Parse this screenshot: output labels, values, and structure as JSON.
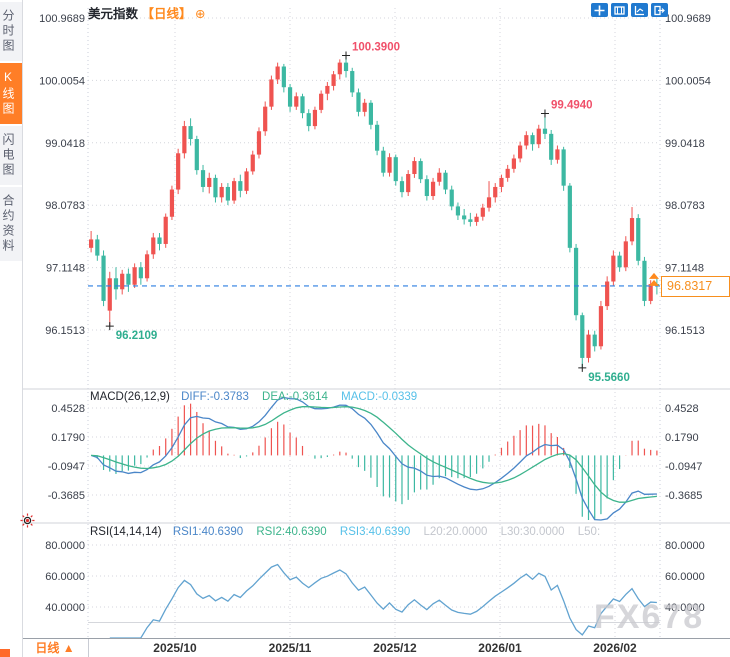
{
  "header": {
    "symbol": "美元指数",
    "period_tag": "【日线】",
    "expand_icon": "⊕"
  },
  "sidebar": {
    "items": [
      {
        "label": "分时图",
        "active": false
      },
      {
        "label": "K线图",
        "active": true
      },
      {
        "label": "闪电图",
        "active": false
      },
      {
        "label": "合约资料",
        "active": false
      }
    ]
  },
  "toolbar": {
    "icons": [
      "pan-crosshair",
      "zoom-box",
      "trend-axis",
      "exit-chart"
    ]
  },
  "macd_header": {
    "name": "MACD(26,12,9)",
    "diff": "DIFF:-0.3783",
    "dea": "DEA:-0.3614",
    "macd": "MACD:-0.0339"
  },
  "rsi_header": {
    "name": "RSI(14,14,14)",
    "rsi1": "RSI1:40.6390",
    "rsi2": "RSI2:40.6390",
    "rsi3": "RSI3:40.6390",
    "l20": "L20:20.0000",
    "l30": "L30:30.0000",
    "l50": "L50:"
  },
  "footer": {
    "period_label": "日线 ▲"
  },
  "watermark": "FX678",
  "last_price": "96.8317",
  "chart_data": {
    "type": "candlestick",
    "title": "美元指数 日线",
    "y_axis_main": {
      "labels": [
        "100.9689",
        "100.0054",
        "99.0418",
        "98.0783",
        "97.1148",
        "96.1513"
      ],
      "top_value": 100.9689,
      "bottom_value": 96.1513
    },
    "y_axis_macd": {
      "labels": [
        "0.4528",
        "0.1790",
        "-0.0947",
        "-0.3685"
      ]
    },
    "y_axis_rsi": {
      "labels": [
        "80.0000",
        "60.0000",
        "40.0000"
      ],
      "levels": [
        80,
        60,
        40
      ],
      "l30_level": 30,
      "l20_level": 20
    },
    "x_axis": {
      "labels": [
        "2025/10",
        "2025/11",
        "2025/12",
        "2026/01",
        "2026/02"
      ]
    },
    "annotations": [
      {
        "text": "100.3900",
        "price": 100.39,
        "index": 41,
        "side": "high",
        "color": "#f0506a"
      },
      {
        "text": "99.4940",
        "price": 99.494,
        "index": 73,
        "side": "high",
        "color": "#f0506a"
      },
      {
        "text": "96.2109",
        "price": 96.2109,
        "index": 3,
        "side": "low",
        "color": "#2fae8f"
      },
      {
        "text": "95.5660",
        "price": 95.566,
        "index": 79,
        "side": "low",
        "color": "#2fae8f"
      }
    ],
    "last_price_value": 96.8317,
    "macd_params": [
      26,
      12,
      9
    ],
    "rsi_params": [
      14,
      14,
      14
    ],
    "colors": {
      "up": "#ef5350",
      "down": "#3cb8a2",
      "diff_line": "#4a86c8",
      "dea_line": "#3db48c",
      "rsi_line": "#62a3d0",
      "dashed_price_line": "#2b7de0",
      "accent_orange": "#ff8a1e",
      "grid": "#d4d6dc",
      "axis_text": "#3a3f4a"
    },
    "ohlc": [
      [
        97.42,
        97.68,
        97.35,
        97.55
      ],
      [
        97.55,
        97.62,
        97.22,
        97.3
      ],
      [
        97.3,
        97.38,
        96.52,
        96.6
      ],
      [
        96.45,
        97.05,
        96.2109,
        96.95
      ],
      [
        96.95,
        97.12,
        96.62,
        96.78
      ],
      [
        96.78,
        97.08,
        96.7,
        97.02
      ],
      [
        97.02,
        97.1,
        96.74,
        96.85
      ],
      [
        96.85,
        97.18,
        96.8,
        97.12
      ],
      [
        97.12,
        97.2,
        96.85,
        96.95
      ],
      [
        96.95,
        97.38,
        96.9,
        97.32
      ],
      [
        97.32,
        97.65,
        97.25,
        97.58
      ],
      [
        97.58,
        97.65,
        97.38,
        97.48
      ],
      [
        97.48,
        97.95,
        97.42,
        97.9
      ],
      [
        97.9,
        98.38,
        97.85,
        98.32
      ],
      [
        98.32,
        98.95,
        98.25,
        98.88
      ],
      [
        98.88,
        99.38,
        98.8,
        99.3
      ],
      [
        99.3,
        99.42,
        99.0,
        99.1
      ],
      [
        99.1,
        99.15,
        98.55,
        98.62
      ],
      [
        98.62,
        98.7,
        98.28,
        98.36
      ],
      [
        98.36,
        98.58,
        98.26,
        98.5
      ],
      [
        98.5,
        98.55,
        98.12,
        98.2
      ],
      [
        98.2,
        98.42,
        98.12,
        98.36
      ],
      [
        98.36,
        98.42,
        98.08,
        98.15
      ],
      [
        98.15,
        98.5,
        98.1,
        98.45
      ],
      [
        98.45,
        98.55,
        98.2,
        98.3
      ],
      [
        98.3,
        98.65,
        98.25,
        98.6
      ],
      [
        98.6,
        98.92,
        98.55,
        98.86
      ],
      [
        98.86,
        99.28,
        98.8,
        99.22
      ],
      [
        99.22,
        99.68,
        99.15,
        99.6
      ],
      [
        99.6,
        100.08,
        99.55,
        100.02
      ],
      [
        100.02,
        100.28,
        99.95,
        100.22
      ],
      [
        100.22,
        100.26,
        99.82,
        99.9
      ],
      [
        99.9,
        99.95,
        99.52,
        99.6
      ],
      [
        99.6,
        99.82,
        99.55,
        99.76
      ],
      [
        99.76,
        99.8,
        99.42,
        99.5
      ],
      [
        99.5,
        99.56,
        99.22,
        99.3
      ],
      [
        99.3,
        99.6,
        99.25,
        99.55
      ],
      [
        99.55,
        99.85,
        99.5,
        99.8
      ],
      [
        99.8,
        99.98,
        99.7,
        99.92
      ],
      [
        99.92,
        100.15,
        99.85,
        100.1
      ],
      [
        100.1,
        100.33,
        100.02,
        100.28
      ],
      [
        100.28,
        100.39,
        100.05,
        100.15
      ],
      [
        100.15,
        100.2,
        99.75,
        99.82
      ],
      [
        99.82,
        99.88,
        99.45,
        99.52
      ],
      [
        99.52,
        99.72,
        99.45,
        99.66
      ],
      [
        99.66,
        99.7,
        99.25,
        99.32
      ],
      [
        99.32,
        99.38,
        98.85,
        98.92
      ],
      [
        98.92,
        98.98,
        98.52,
        98.58
      ],
      [
        98.58,
        98.88,
        98.52,
        98.82
      ],
      [
        98.82,
        98.86,
        98.38,
        98.45
      ],
      [
        98.45,
        98.52,
        98.2,
        98.28
      ],
      [
        98.28,
        98.62,
        98.22,
        98.56
      ],
      [
        98.56,
        98.82,
        98.5,
        98.76
      ],
      [
        98.76,
        98.8,
        98.42,
        98.48
      ],
      [
        98.48,
        98.54,
        98.15,
        98.22
      ],
      [
        98.22,
        98.5,
        98.16,
        98.44
      ],
      [
        98.44,
        98.65,
        98.38,
        98.58
      ],
      [
        98.58,
        98.62,
        98.25,
        98.32
      ],
      [
        98.32,
        98.38,
        98.0,
        98.06
      ],
      [
        98.06,
        98.12,
        97.85,
        97.92
      ],
      [
        97.92,
        98.02,
        97.78,
        97.86
      ],
      [
        97.86,
        97.96,
        97.75,
        97.82
      ],
      [
        97.82,
        97.95,
        97.76,
        97.9
      ],
      [
        97.9,
        98.1,
        97.84,
        98.04
      ],
      [
        98.04,
        98.45,
        97.98,
        98.2
      ],
      [
        98.2,
        98.42,
        98.12,
        98.36
      ],
      [
        98.36,
        98.55,
        98.28,
        98.5
      ],
      [
        98.5,
        98.7,
        98.44,
        98.64
      ],
      [
        98.64,
        98.86,
        98.58,
        98.8
      ],
      [
        98.8,
        99.06,
        98.74,
        99.0
      ],
      [
        99.0,
        99.22,
        98.94,
        99.16
      ],
      [
        99.16,
        99.2,
        98.92,
        99.02
      ],
      [
        99.02,
        99.32,
        98.96,
        99.26
      ],
      [
        99.26,
        99.494,
        99.1,
        99.18
      ],
      [
        99.18,
        99.24,
        98.7,
        98.78
      ],
      [
        98.78,
        99.0,
        98.72,
        98.94
      ],
      [
        98.94,
        98.98,
        98.3,
        98.38
      ],
      [
        98.38,
        98.42,
        97.35,
        97.42
      ],
      [
        97.42,
        97.48,
        96.3,
        96.38
      ],
      [
        96.38,
        96.42,
        95.566,
        95.72
      ],
      [
        95.72,
        96.15,
        95.65,
        96.08
      ],
      [
        96.08,
        96.14,
        95.82,
        95.9
      ],
      [
        95.9,
        96.6,
        95.85,
        96.52
      ],
      [
        96.52,
        96.98,
        96.46,
        96.9
      ],
      [
        96.9,
        97.38,
        96.84,
        97.3
      ],
      [
        97.3,
        97.36,
        97.05,
        97.12
      ],
      [
        97.12,
        97.6,
        97.06,
        97.52
      ],
      [
        97.52,
        98.05,
        97.46,
        97.88
      ],
      [
        97.88,
        97.94,
        97.15,
        97.22
      ],
      [
        97.22,
        97.28,
        96.52,
        96.6
      ],
      [
        96.6,
        96.92,
        96.55,
        96.86
      ],
      [
        96.86,
        96.95,
        96.7,
        96.8317
      ]
    ]
  }
}
